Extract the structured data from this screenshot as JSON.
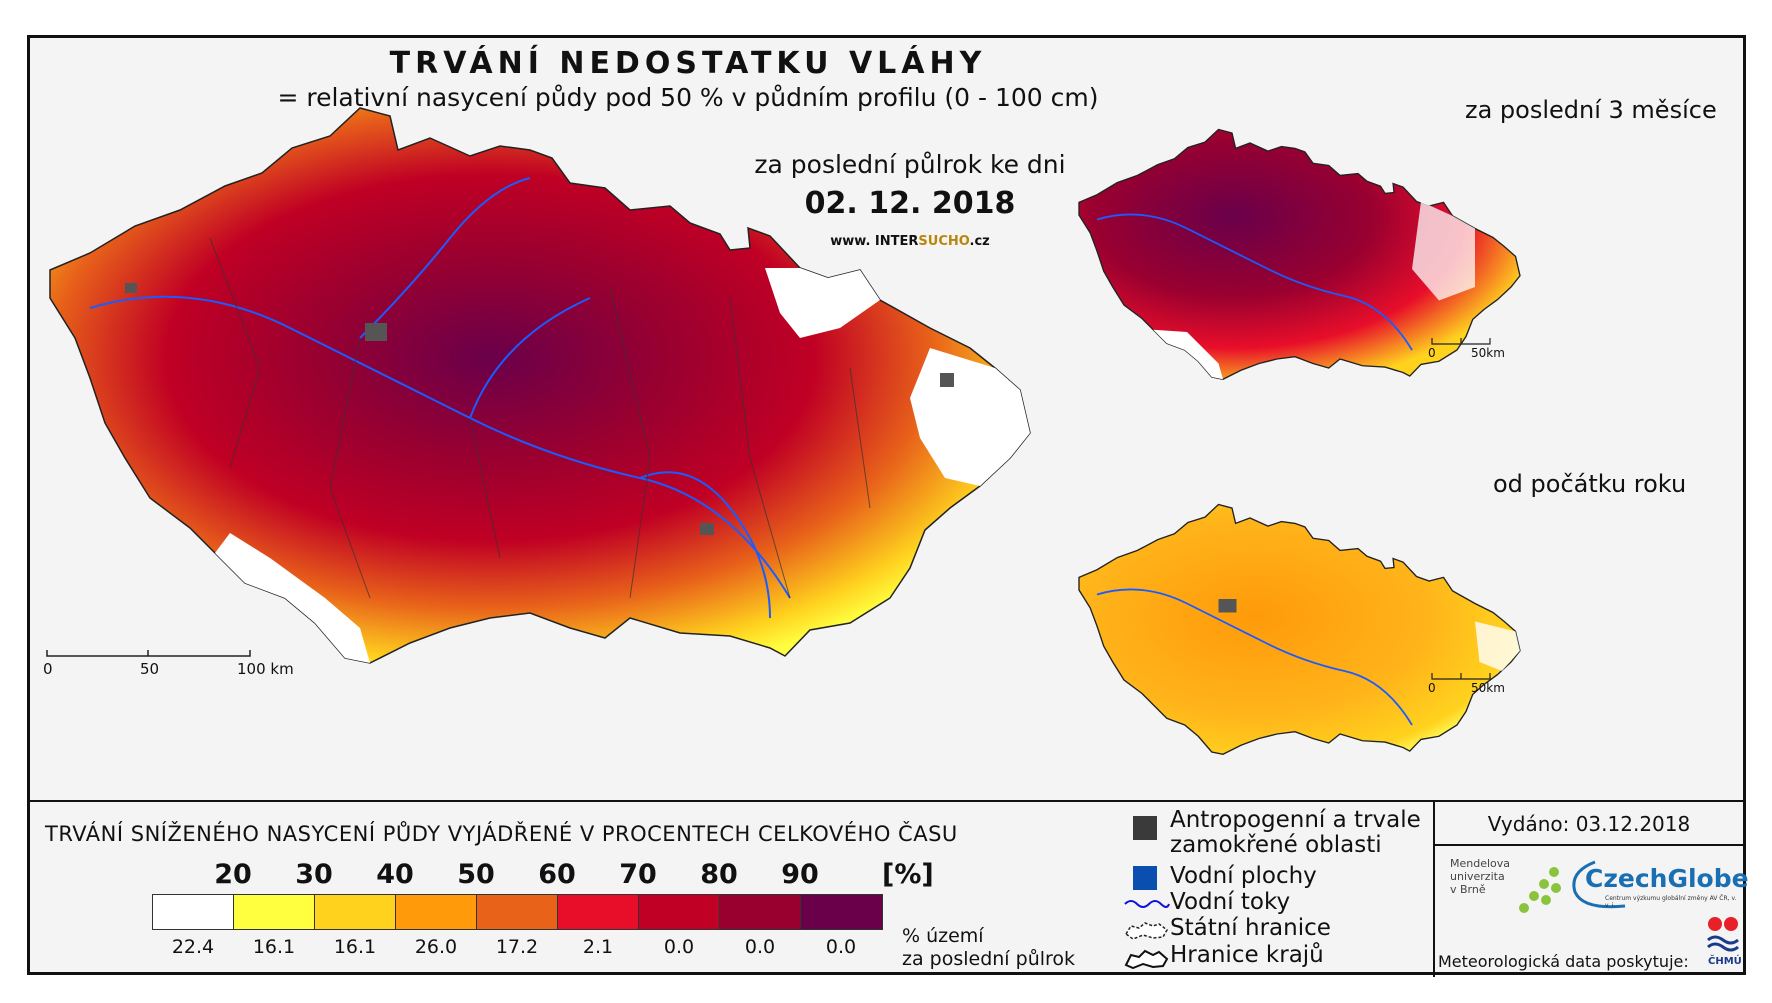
{
  "header": {
    "title": "TRVÁNÍ NEDOSTATKU VLÁHY",
    "subtitle": "= relativní nasycení půdy pod 50 % v půdním profilu (0 - 100 cm)",
    "period_label": "za poslední půlrok ke dni",
    "date": "02. 12. 2018",
    "website_prefix": "www. INTER",
    "website_highlight": "SUCHO",
    "website_suffix": ".cz"
  },
  "inset_maps": {
    "last_3_months_title": "za poslední 3 měsíce",
    "since_year_start_title": "od počátku roku"
  },
  "scale_bars": {
    "main": [
      "0",
      "50",
      "100 km"
    ],
    "inset": [
      "0",
      "50km"
    ]
  },
  "legend": {
    "title": "TRVÁNÍ SNÍŽENÉHO NASYCENÍ PŮDY VYJÁDŘENÉ V PROCENTECH CELKOVÉHO ČASU",
    "ticks": [
      "20",
      "30",
      "40",
      "50",
      "60",
      "70",
      "80",
      "90"
    ],
    "unit": "[%]",
    "colors": [
      "#ffffff",
      "#ffff40",
      "#ffd21e",
      "#ff9a0a",
      "#e8621a",
      "#e80e2a",
      "#c00024",
      "#990030",
      "#6a004a"
    ],
    "percentages": [
      "22.4",
      "16.1",
      "16.1",
      "26.0",
      "17.2",
      "2.1",
      "0.0",
      "0.0",
      "0.0"
    ],
    "percent_label_line1": "% území",
    "percent_label_line2": "za poslední půlrok"
  },
  "map_keys": {
    "anthropogenic_line1": "Antropogenní a trvale",
    "anthropogenic_line2": "zamokřené oblasti",
    "water_bodies": "Vodní plochy",
    "watercourses": "Vodní toky",
    "state_border": "Státní hranice",
    "regional_border": "Hranice krajů",
    "key_colors": {
      "anthropogenic": "#3a3a3a",
      "water": "#0a4fb0",
      "stream": "#1010e0"
    }
  },
  "footer": {
    "issued": "Vydáno: 03.12.2018",
    "mendel_line1": "Mendelova",
    "mendel_line2": "univerzita",
    "mendel_line3": "v Brně",
    "czechglobe": "CzechGlobe",
    "czechglobe_sub": "Centrum výzkumu globální změny AV ČR, v. v. i.",
    "meteo": "Meteorologická data poskytuje:",
    "chmu": "ČHMÚ"
  }
}
